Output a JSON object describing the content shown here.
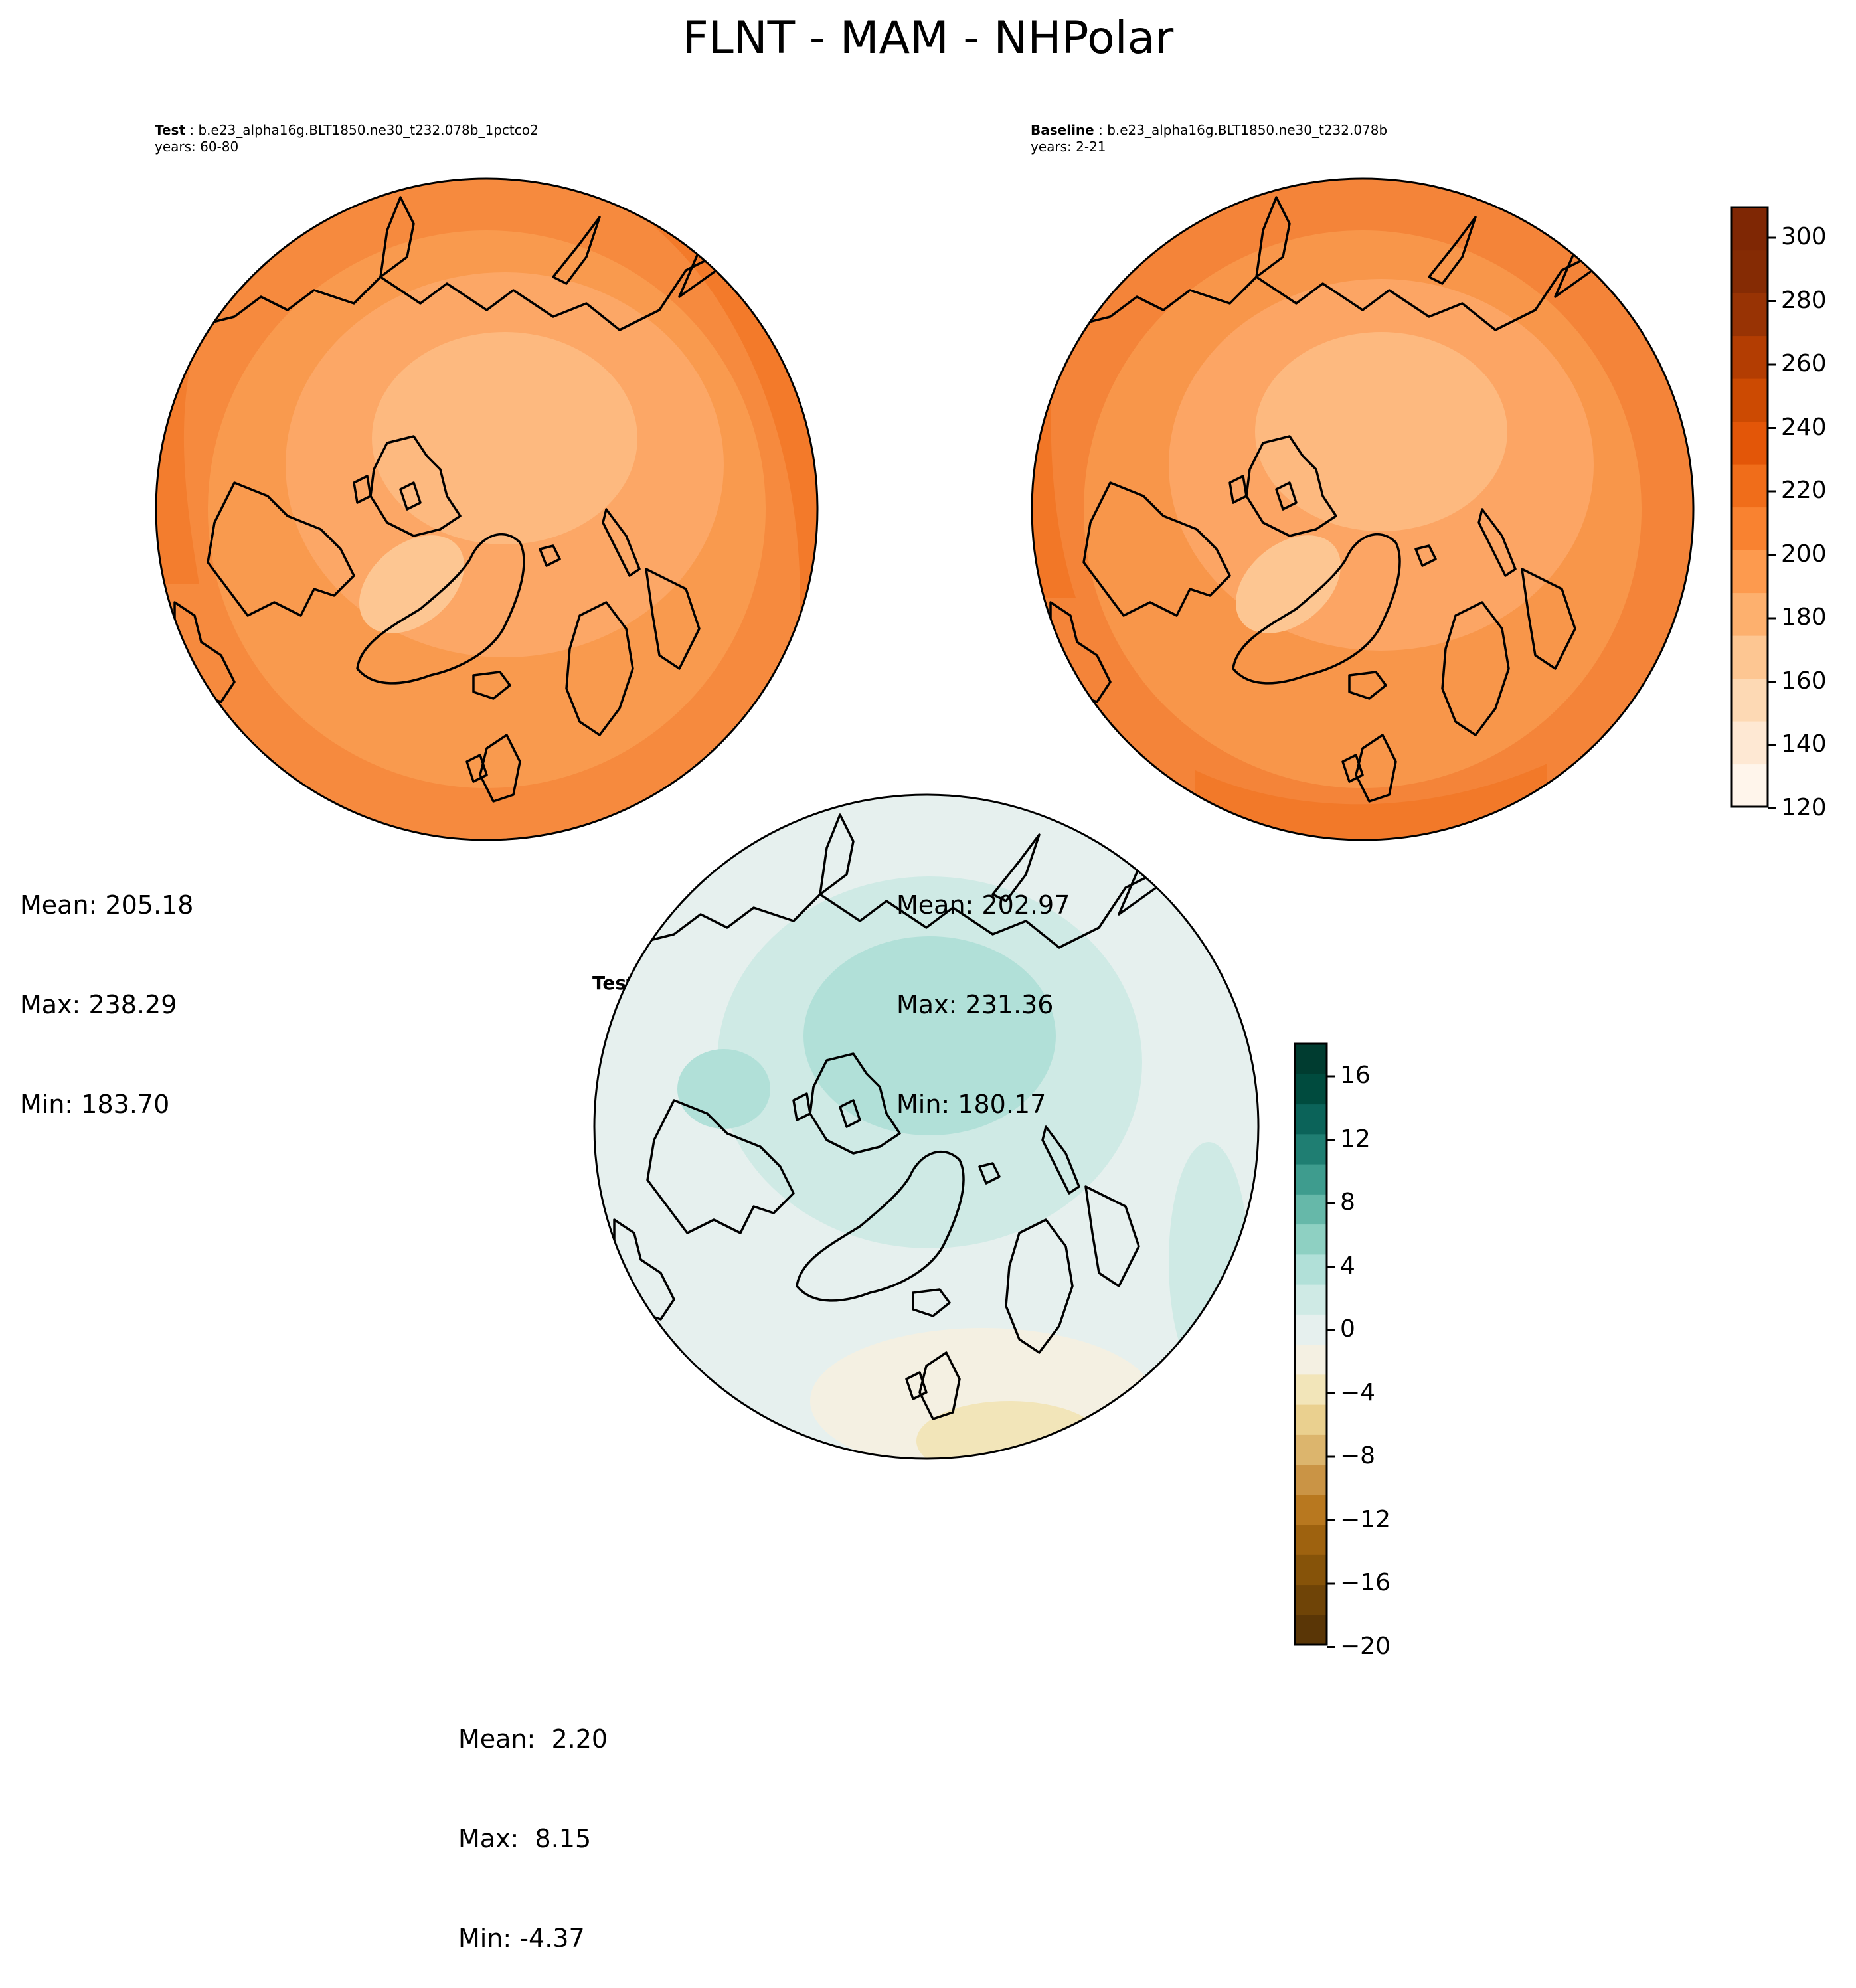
{
  "title": "FLNT - MAM - NHPolar",
  "panels": {
    "test": {
      "label": "Test",
      "case": "b.e23_alpha16g.BLT1850.ne30_t232.078b_1pctco2",
      "years": "years: 60-80",
      "stats": {
        "mean": "Mean: 205.18",
        "max": "Max: 238.29",
        "min": "Min: 183.70"
      }
    },
    "baseline": {
      "label": "Baseline",
      "case": "b.e23_alpha16g.BLT1850.ne30_t232.078b",
      "years": "years: 2-21",
      "stats": {
        "mean": "Mean: 202.97",
        "max": "Max: 231.36",
        "min": "Min: 180.17"
      }
    },
    "diff": {
      "label": "Test − Baseline",
      "stats": {
        "mean": "Mean:  2.20",
        "max": "Max:  8.15",
        "min": "Min: -4.37"
      }
    }
  },
  "colorbar_main": {
    "ticks": [
      "300",
      "280",
      "260",
      "240",
      "220",
      "200",
      "180",
      "160",
      "140",
      "120"
    ],
    "colors": [
      "#fff5eb",
      "#fee8d3",
      "#fdd9b4",
      "#fdc692",
      "#fdb06e",
      "#fd9a4e",
      "#f98230",
      "#f06d1a",
      "#e35608",
      "#cc4a02",
      "#b33d02",
      "#983304",
      "#852b04",
      "#7f2704"
    ]
  },
  "colorbar_diff": {
    "ticks": [
      "16",
      "12",
      "8",
      "4",
      "0",
      "−4",
      "−8",
      "−12",
      "−16",
      "−20"
    ],
    "colors": [
      "#5a3606",
      "#6f4407",
      "#865309",
      "#9e620f",
      "#b8781f",
      "#ca9445",
      "#dcb56d",
      "#ead08f",
      "#f2e5b9",
      "#f4f0e2",
      "#e6f0ee",
      "#cfeae5",
      "#b1e0d8",
      "#8ed0c2",
      "#66b8a9",
      "#3e9c8e",
      "#1f7e72",
      "#0b6359",
      "#004b3e",
      "#003c30"
    ]
  },
  "map_fill": {
    "test": "#f99a4e",
    "baseline": "#f8964a",
    "diff": "#e6f0ee"
  }
}
